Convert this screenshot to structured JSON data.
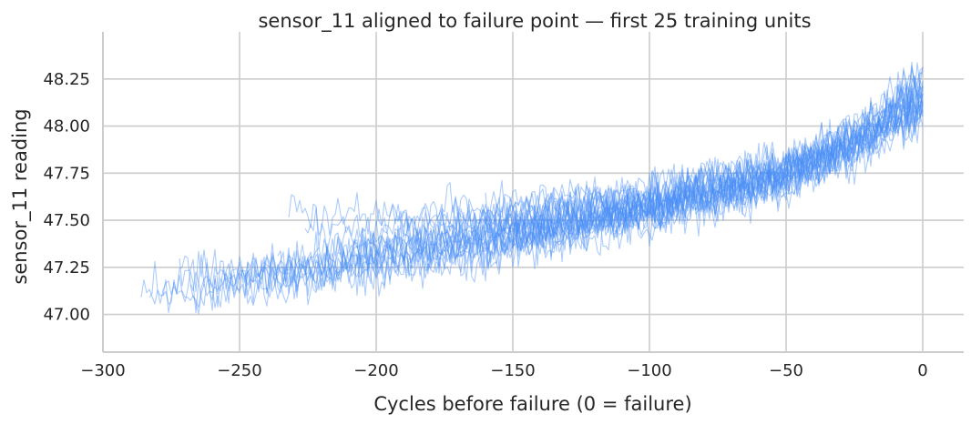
{
  "chart_data": {
    "type": "line",
    "title": "sensor_11 aligned to failure point — first 25 training units",
    "xlabel": "Cycles before failure (0 = failure)",
    "ylabel": "sensor_11 reading",
    "xlim": [
      -300,
      15
    ],
    "ylim": [
      46.8,
      48.5
    ],
    "xticks": [
      -300,
      -250,
      -200,
      -150,
      -100,
      -50,
      0
    ],
    "xtick_labels": [
      "−300",
      "−250",
      "−200",
      "−150",
      "−100",
      "−50",
      "0"
    ],
    "yticks": [
      47.0,
      47.25,
      47.5,
      47.75,
      48.0,
      48.25
    ],
    "ytick_labels": [
      "47.00",
      "47.25",
      "47.50",
      "47.75",
      "48.00",
      "48.25"
    ],
    "grid": true,
    "legend": "none",
    "line_color": "#4a8ff7",
    "line_opacity": 0.45,
    "series": [
      {
        "x": [
          -286,
          -250,
          -200,
          -150,
          -100,
          -50,
          -25,
          0
        ],
        "y": [
          47.08,
          47.14,
          47.22,
          47.34,
          47.48,
          47.68,
          47.86,
          48.12
        ]
      },
      {
        "x": [
          -283,
          -250,
          -200,
          -150,
          -100,
          -50,
          -25,
          0
        ],
        "y": [
          47.18,
          47.2,
          47.3,
          47.42,
          47.55,
          47.74,
          47.9,
          48.18
        ]
      },
      {
        "x": [
          -278,
          -250,
          -200,
          -150,
          -100,
          -50,
          -25,
          0
        ],
        "y": [
          47.12,
          47.16,
          47.26,
          47.38,
          47.52,
          47.7,
          47.88,
          48.1
        ]
      },
      {
        "x": [
          -272,
          -250,
          -200,
          -150,
          -100,
          -50,
          -25,
          0
        ],
        "y": [
          47.2,
          47.22,
          47.34,
          47.44,
          47.58,
          47.76,
          47.92,
          48.2
        ]
      },
      {
        "x": [
          -268,
          -250,
          -200,
          -150,
          -100,
          -50,
          -25,
          0
        ],
        "y": [
          47.1,
          47.15,
          47.24,
          47.36,
          47.5,
          47.69,
          47.85,
          48.06
        ]
      },
      {
        "x": [
          -262,
          -250,
          -200,
          -150,
          -100,
          -50,
          -25,
          0
        ],
        "y": [
          47.15,
          47.2,
          47.28,
          47.4,
          47.54,
          47.72,
          47.9,
          48.15
        ]
      },
      {
        "x": [
          -255,
          -200,
          -150,
          -100,
          -50,
          -25,
          0
        ],
        "y": [
          47.2,
          47.32,
          47.42,
          47.56,
          47.75,
          47.93,
          48.22
        ]
      },
      {
        "x": [
          -248,
          -200,
          -150,
          -100,
          -50,
          -25,
          0
        ],
        "y": [
          47.16,
          47.27,
          47.39,
          47.53,
          47.71,
          47.87,
          48.08
        ]
      },
      {
        "x": [
          -242,
          -200,
          -150,
          -100,
          -50,
          -25,
          0
        ],
        "y": [
          47.22,
          47.36,
          47.46,
          47.6,
          47.78,
          47.95,
          48.24
        ]
      },
      {
        "x": [
          -236,
          -200,
          -150,
          -100,
          -50,
          -25,
          0
        ],
        "y": [
          47.25,
          47.35,
          47.45,
          47.57,
          47.74,
          47.9,
          48.12
        ]
      },
      {
        "x": [
          -232,
          -200,
          -150,
          -100,
          -50,
          -25,
          0
        ],
        "y": [
          47.55,
          47.5,
          47.52,
          47.62,
          47.78,
          47.94,
          48.2
        ]
      },
      {
        "x": [
          -226,
          -200,
          -150,
          -100,
          -50,
          -25,
          0
        ],
        "y": [
          47.45,
          47.46,
          47.5,
          47.6,
          47.76,
          47.92,
          48.16
        ]
      },
      {
        "x": [
          -220,
          -200,
          -150,
          -100,
          -50,
          -25,
          0
        ],
        "y": [
          47.3,
          47.36,
          47.45,
          47.57,
          47.73,
          47.9,
          48.1
        ]
      },
      {
        "x": [
          -214,
          -200,
          -150,
          -100,
          -50,
          -25,
          0
        ],
        "y": [
          47.4,
          47.42,
          47.48,
          47.6,
          47.77,
          47.95,
          48.25
        ]
      },
      {
        "x": [
          -208,
          -150,
          -100,
          -50,
          -25,
          0
        ],
        "y": [
          47.35,
          47.44,
          47.56,
          47.72,
          47.88,
          48.05
        ]
      },
      {
        "x": [
          -200,
          -150,
          -100,
          -50,
          -25,
          0
        ],
        "y": [
          47.5,
          47.55,
          47.65,
          47.8,
          47.96,
          48.22
        ]
      },
      {
        "x": [
          -192,
          -150,
          -100,
          -50,
          -25,
          0
        ],
        "y": [
          47.45,
          47.5,
          47.62,
          47.78,
          47.93,
          48.14
        ]
      },
      {
        "x": [
          -186,
          -150,
          -100,
          -50,
          -25,
          0
        ],
        "y": [
          47.3,
          47.4,
          47.54,
          47.72,
          47.89,
          48.1
        ]
      },
      {
        "x": [
          -178,
          -150,
          -100,
          -50,
          -25,
          0
        ],
        "y": [
          47.55,
          47.58,
          47.66,
          47.82,
          47.98,
          48.28
        ]
      },
      {
        "x": [
          -170,
          -150,
          -100,
          -50,
          -25,
          0
        ],
        "y": [
          47.4,
          47.45,
          47.58,
          47.75,
          47.9,
          48.12
        ]
      },
      {
        "x": [
          -165,
          -100,
          -50,
          -25,
          0
        ],
        "y": [
          47.35,
          47.55,
          47.74,
          47.9,
          48.08
        ]
      },
      {
        "x": [
          -160,
          -100,
          -50,
          -25,
          0
        ],
        "y": [
          47.6,
          47.65,
          47.8,
          47.96,
          48.2
        ]
      },
      {
        "x": [
          -155,
          -100,
          -50,
          -25,
          0
        ],
        "y": [
          47.45,
          47.58,
          47.76,
          47.92,
          48.16
        ]
      },
      {
        "x": [
          -152,
          -100,
          -50,
          -25,
          0
        ],
        "y": [
          47.5,
          47.62,
          47.79,
          47.95,
          48.3
        ]
      },
      {
        "x": [
          -150,
          -100,
          -50,
          -25,
          0
        ],
        "y": [
          47.4,
          47.56,
          47.74,
          47.9,
          48.1
        ]
      }
    ]
  }
}
